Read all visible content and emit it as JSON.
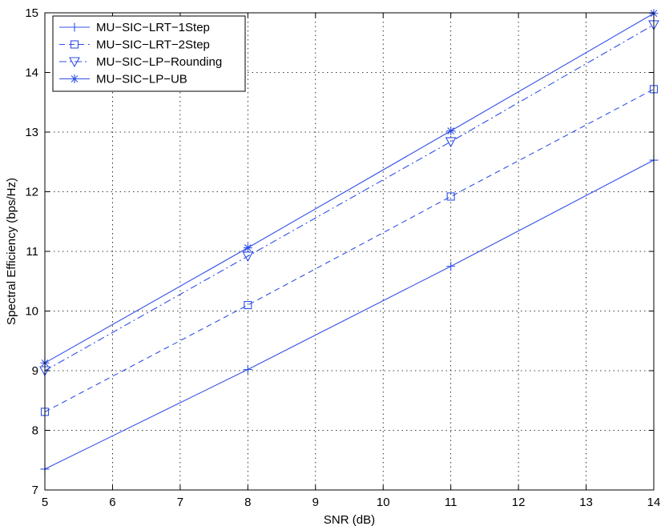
{
  "chart_data": {
    "type": "line",
    "xlabel": "SNR (dB)",
    "ylabel": "Spectral Efficiency (bps/Hz)",
    "xlim": [
      5,
      14
    ],
    "ylim": [
      7,
      15
    ],
    "xticks": [
      "5",
      "6",
      "7",
      "8",
      "9",
      "10",
      "11",
      "12",
      "13",
      "14"
    ],
    "yticks": [
      "7",
      "8",
      "9",
      "10",
      "11",
      "12",
      "13",
      "14",
      "15"
    ],
    "grid": true,
    "legend_position": "top-left",
    "line_color": "#3050E8",
    "x": [
      5,
      8,
      11,
      14
    ],
    "series": [
      {
        "name": "MU−SIC−LRT−1Step",
        "values": [
          7.35,
          9.02,
          10.75,
          12.53
        ],
        "linestyle": "solid",
        "marker": "plus"
      },
      {
        "name": "MU−SIC−LRT−2Step",
        "values": [
          8.31,
          10.1,
          11.92,
          13.72
        ],
        "linestyle": "dashed",
        "marker": "square"
      },
      {
        "name": "MU−SIC−LP−Rounding",
        "values": [
          9.0,
          10.92,
          12.84,
          14.8
        ],
        "linestyle": "dashdot",
        "marker": "triangle-down"
      },
      {
        "name": "MU−SIC−LP−UB",
        "values": [
          9.13,
          11.06,
          13.02,
          14.99
        ],
        "linestyle": "solid",
        "marker": "asterisk"
      }
    ]
  }
}
